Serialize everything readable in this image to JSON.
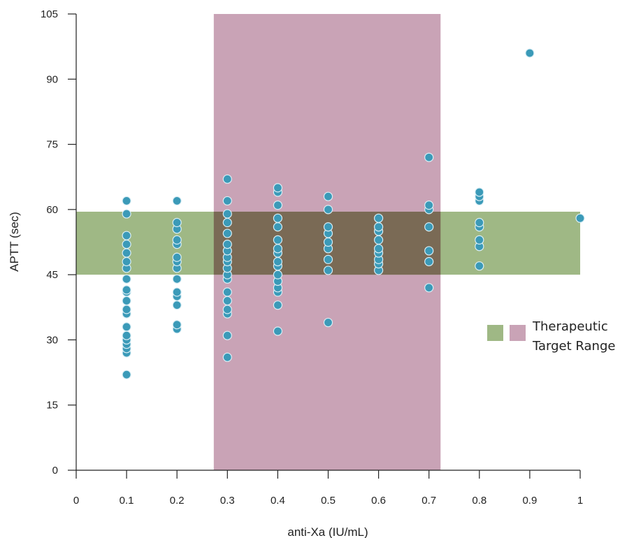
{
  "chart_data": {
    "type": "scatter",
    "xlabel": "anti-Xa (IU/mL)",
    "ylabel": "APTT (sec)",
    "xlim": [
      0,
      1
    ],
    "ylim": [
      0,
      105
    ],
    "xticks": [
      "0",
      "0.1",
      "0.2",
      "0.3",
      "0.4",
      "0.5",
      "0.6",
      "0.7",
      "0.8",
      "0.9",
      "1"
    ],
    "yticks": [
      "0",
      "15",
      "30",
      "45",
      "60",
      "75",
      "90",
      "105"
    ],
    "grid": false,
    "bands": {
      "anti_xa_range": [
        0.273,
        0.723
      ],
      "aptt_range": [
        45,
        59.5
      ],
      "anti_xa_color": "#c9a3b6",
      "aptt_color": "#9fb885",
      "overlap_color": "#7a6a55"
    },
    "point_color": "#3b9ab8",
    "point_stroke": "#d9eef5",
    "legend": {
      "position": "right",
      "lines": [
        "Therapeutic",
        "Target Range"
      ]
    },
    "points": [
      [
        0.1,
        22
      ],
      [
        0.1,
        27
      ],
      [
        0.1,
        28
      ],
      [
        0.1,
        29
      ],
      [
        0.1,
        30
      ],
      [
        0.1,
        31
      ],
      [
        0.1,
        33
      ],
      [
        0.1,
        36
      ],
      [
        0.1,
        37
      ],
      [
        0.1,
        39
      ],
      [
        0.1,
        41
      ],
      [
        0.1,
        41.5
      ],
      [
        0.1,
        44
      ],
      [
        0.1,
        46.5
      ],
      [
        0.1,
        48
      ],
      [
        0.1,
        50
      ],
      [
        0.1,
        52
      ],
      [
        0.1,
        54
      ],
      [
        0.1,
        59
      ],
      [
        0.1,
        62
      ],
      [
        0.2,
        32.5
      ],
      [
        0.2,
        33.5
      ],
      [
        0.2,
        38
      ],
      [
        0.2,
        40
      ],
      [
        0.2,
        41
      ],
      [
        0.2,
        44
      ],
      [
        0.2,
        46.5
      ],
      [
        0.2,
        48
      ],
      [
        0.2,
        49
      ],
      [
        0.2,
        52
      ],
      [
        0.2,
        53
      ],
      [
        0.2,
        55.5
      ],
      [
        0.2,
        57
      ],
      [
        0.2,
        62
      ],
      [
        0.3,
        26
      ],
      [
        0.3,
        31
      ],
      [
        0.3,
        36
      ],
      [
        0.3,
        37
      ],
      [
        0.3,
        39
      ],
      [
        0.3,
        41
      ],
      [
        0.3,
        44
      ],
      [
        0.3,
        45
      ],
      [
        0.3,
        46.5
      ],
      [
        0.3,
        48
      ],
      [
        0.3,
        49
      ],
      [
        0.3,
        50.5
      ],
      [
        0.3,
        52
      ],
      [
        0.3,
        54.5
      ],
      [
        0.3,
        57
      ],
      [
        0.3,
        59
      ],
      [
        0.3,
        62
      ],
      [
        0.3,
        67
      ],
      [
        0.4,
        32
      ],
      [
        0.4,
        38
      ],
      [
        0.4,
        41
      ],
      [
        0.4,
        42
      ],
      [
        0.4,
        43.5
      ],
      [
        0.4,
        45
      ],
      [
        0.4,
        47
      ],
      [
        0.4,
        48
      ],
      [
        0.4,
        50
      ],
      [
        0.4,
        51
      ],
      [
        0.4,
        53
      ],
      [
        0.4,
        56
      ],
      [
        0.4,
        58
      ],
      [
        0.4,
        61
      ],
      [
        0.4,
        64
      ],
      [
        0.4,
        65
      ],
      [
        0.5,
        34
      ],
      [
        0.5,
        46
      ],
      [
        0.5,
        48.5
      ],
      [
        0.5,
        51
      ],
      [
        0.5,
        52.5
      ],
      [
        0.5,
        54.5
      ],
      [
        0.5,
        56
      ],
      [
        0.5,
        60
      ],
      [
        0.5,
        63
      ],
      [
        0.6,
        46
      ],
      [
        0.6,
        47.5
      ],
      [
        0.6,
        48.5
      ],
      [
        0.6,
        50
      ],
      [
        0.6,
        51
      ],
      [
        0.6,
        53
      ],
      [
        0.6,
        55
      ],
      [
        0.6,
        56
      ],
      [
        0.6,
        58
      ],
      [
        0.7,
        42
      ],
      [
        0.7,
        48
      ],
      [
        0.7,
        50.5
      ],
      [
        0.7,
        56
      ],
      [
        0.7,
        60
      ],
      [
        0.7,
        61
      ],
      [
        0.7,
        72
      ],
      [
        0.8,
        47
      ],
      [
        0.8,
        51.5
      ],
      [
        0.8,
        53
      ],
      [
        0.8,
        56
      ],
      [
        0.8,
        57
      ],
      [
        0.8,
        62
      ],
      [
        0.8,
        63
      ],
      [
        0.8,
        64
      ],
      [
        0.9,
        96
      ],
      [
        1.0,
        58
      ]
    ]
  }
}
